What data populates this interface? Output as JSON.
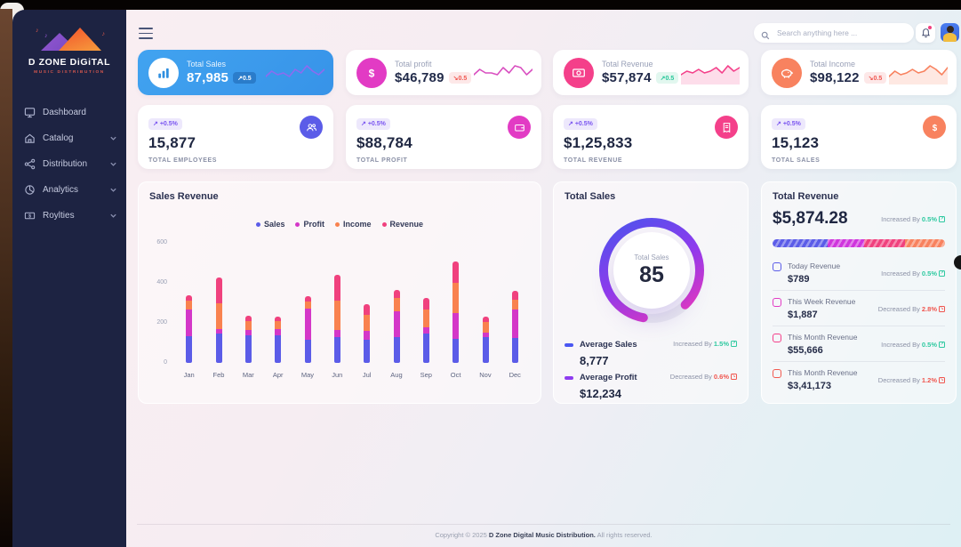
{
  "topbar": {
    "search_placeholder": "Search anything here ...",
    "footer": {
      "prefix": "Copyright © 2025",
      "brand": "D Zone Digital Music Distribution.",
      "suffix": "All rights reserved."
    }
  },
  "sidebar": {
    "brand": "D ZONE DiGiTAL",
    "brand_sub": "MUSIC DISTRIBUTION",
    "items": [
      {
        "label": "Dashboard",
        "icon": "dashboard-icon",
        "expandable": false
      },
      {
        "label": "Catalog",
        "icon": "catalog-icon",
        "expandable": true
      },
      {
        "label": "Distribution",
        "icon": "distribution-icon",
        "expandable": true
      },
      {
        "label": "Analytics",
        "icon": "analytics-icon",
        "expandable": true
      },
      {
        "label": "Roylties",
        "icon": "royalties-icon",
        "expandable": true
      }
    ]
  },
  "kpi_row1": [
    {
      "label": "Total Sales",
      "value": "87,985",
      "badge": "0.5",
      "trend": "up",
      "variant": "primary",
      "icon": "bar-chart-icon",
      "icon_bg": "#ffffff",
      "spark_color": "#8d6bf0",
      "spark_fill": false,
      "spark": [
        7,
        4,
        6,
        5,
        7,
        3,
        5,
        1,
        4,
        6,
        3
      ]
    },
    {
      "label": "Total profit",
      "value": "$46,789",
      "badge": "0.5",
      "trend": "down",
      "variant": "light",
      "icon": "dollar-icon",
      "icon_bg": "#e23bc4",
      "spark_color": "#d94fc0",
      "spark_fill": false,
      "spark": [
        6,
        3,
        5,
        5,
        6,
        2,
        5,
        1,
        2,
        6,
        3
      ]
    },
    {
      "label": "Total Revenue",
      "value": "$57,874",
      "badge": "0.5",
      "trend": "up",
      "variant": "light",
      "icon": "banknote-icon",
      "icon_bg": "#f4408a",
      "spark_color": "#f4408a",
      "spark_fill": true,
      "spark": [
        6,
        4,
        5,
        3,
        5,
        4,
        2,
        5,
        1,
        4,
        2
      ]
    },
    {
      "label": "Total Income",
      "value": "$98,122",
      "badge": "0.5",
      "trend": "down",
      "variant": "light",
      "icon": "piggy-icon",
      "icon_bg": "#f8825f",
      "spark_color": "#f8825f",
      "spark_fill": true,
      "spark": [
        7,
        4,
        6,
        5,
        3,
        5,
        4,
        1,
        3,
        6,
        2
      ]
    }
  ],
  "kpi_row2": [
    {
      "badge": "+0.5%",
      "value": "15,877",
      "label": "TOTAL EMPLOYEES",
      "icon": "users-icon",
      "icon_bg": "#5b5ce8"
    },
    {
      "badge": "+0.5%",
      "value": "$88,784",
      "label": "TOTAL PROFIT",
      "icon": "wallet-icon",
      "icon_bg": "#e23bc4"
    },
    {
      "badge": "+0.5%",
      "value": "$1,25,833",
      "label": "TOTAL REVENUE",
      "icon": "receipt-icon",
      "icon_bg": "#f4408a"
    },
    {
      "badge": "+0.5%",
      "value": "15,123",
      "label": "TOTAL SALES",
      "icon": "dollar-icon",
      "icon_bg": "#f8825f"
    }
  ],
  "chart_data": [
    {
      "type": "bar",
      "stacked": true,
      "title": "Sales Revenue",
      "categories": [
        "Jan",
        "Feb",
        "Mar",
        "Apr",
        "May",
        "Jun",
        "Jul",
        "Aug",
        "Sep",
        "Oct",
        "Nov",
        "Dec"
      ],
      "series": [
        {
          "name": "Sales",
          "color": "#5b5ce8",
          "values": [
            135,
            145,
            140,
            140,
            115,
            130,
            115,
            130,
            145,
            120,
            130,
            125
          ]
        },
        {
          "name": "Profit",
          "color": "#d437c8",
          "values": [
            130,
            25,
            25,
            30,
            155,
            35,
            45,
            130,
            35,
            130,
            20,
            140
          ]
        },
        {
          "name": "Income",
          "color": "#f9824f",
          "values": [
            45,
            130,
            45,
            40,
            35,
            145,
            80,
            65,
            85,
            150,
            55,
            50
          ]
        },
        {
          "name": "Revenue",
          "color": "#f0417e",
          "values": [
            30,
            125,
            25,
            20,
            30,
            130,
            55,
            40,
            60,
            105,
            25,
            45
          ]
        }
      ],
      "ylim": [
        0,
        600
      ],
      "yticks": [
        0,
        200,
        400,
        600
      ],
      "legend_position": "top",
      "grid": false
    },
    {
      "type": "donut-gauge",
      "title": "Total Sales",
      "center_label": "Total Sales",
      "value": 85,
      "max": 100,
      "gradient": [
        "#4956ec",
        "#8f3bee",
        "#e437c2"
      ],
      "track_color": "#e9e9ef"
    }
  ],
  "gauge_panel": {
    "title": "Total Sales",
    "stats": [
      {
        "label": "Average Sales",
        "value": "8,777",
        "status": "Increased By",
        "pct": "1.5%",
        "dir": "up",
        "dash_color": "#4a57f2"
      },
      {
        "label": "Average Profit",
        "value": "$12,234",
        "status": "Decreased By",
        "pct": "0.6%",
        "dir": "down",
        "dash_color": "#8e3cf0"
      }
    ]
  },
  "revenue_panel": {
    "title": "Total Revenue",
    "total": "$5,874.28",
    "status": "Increased By",
    "pct": "0.5%",
    "dir": "up",
    "bar_segments": [
      {
        "color": "#5b5ce8",
        "pct": 32
      },
      {
        "color": "#cf35dd",
        "pct": 21
      },
      {
        "color": "#f0417e",
        "pct": 24
      },
      {
        "color": "#f8825f",
        "pct": 23
      }
    ],
    "rows": [
      {
        "label": "Today Revenue",
        "value": "$789",
        "status": "Increased By",
        "pct": "0.5%",
        "dir": "up",
        "icon_color": "#5b5ce8"
      },
      {
        "label": "This Week Revenue",
        "value": "$1,887",
        "status": "Decreased By",
        "pct": "2.8%",
        "dir": "down",
        "icon_color": "#e23bc4"
      },
      {
        "label": "This Month Revenue",
        "value": "$55,666",
        "status": "Increased By",
        "pct": "0.5%",
        "dir": "up",
        "icon_color": "#f4408a"
      },
      {
        "label": "This Month Revenue",
        "value": "$3,41,173",
        "status": "Decreased By",
        "pct": "1.2%",
        "dir": "down",
        "icon_color": "#f2594f"
      }
    ]
  }
}
